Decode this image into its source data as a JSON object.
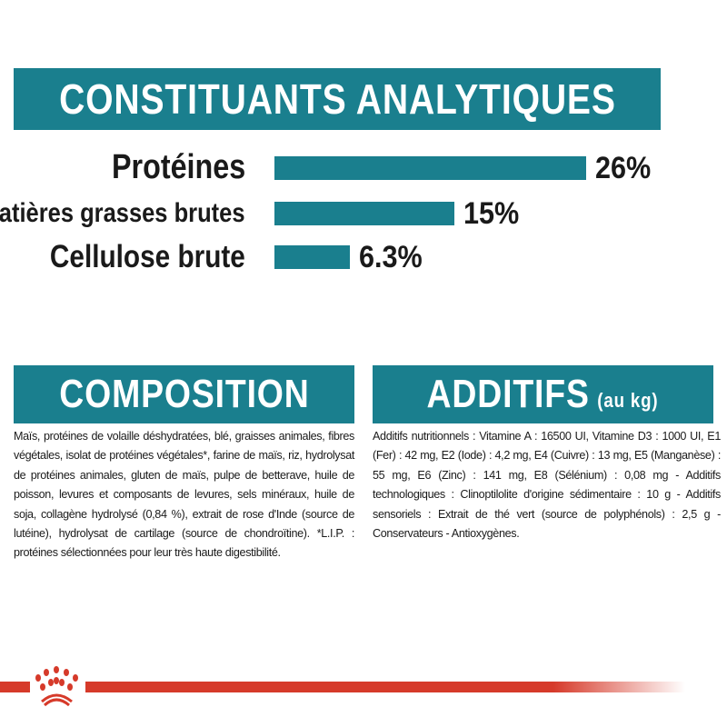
{
  "analytics": {
    "title": "CONSTITUANTS ANALYTIQUES",
    "items": [
      {
        "label": "Protéines",
        "value_label": "26%",
        "value": 26
      },
      {
        "label": "Matières grasses brutes",
        "value_label": "15%",
        "value": 15
      },
      {
        "label": "Cellulose brute",
        "value_label": "6.3%",
        "value": 6.3
      }
    ]
  },
  "composition": {
    "title": "COMPOSITION",
    "text": "Maïs, protéines de volaille déshydratées, blé, graisses animales, fibres végétales, isolat de protéines végétales*, farine de maïs, riz, hydrolysat de protéines animales, gluten de maïs, pulpe de betterave, huile de poisson, levures et composants de levures, sels minéraux, huile de soja, collagène hydrolysé (0,84 %), extrait de rose d'Inde (source de lutéine), hydrolysat de cartilage (source de chondroïtine). *L.I.P. : protéines sélectionnées pour leur très haute digestibilité."
  },
  "additifs": {
    "title": "ADDITIFS",
    "subtitle": "(au kg)",
    "text": "Additifs nutritionnels : Vitamine A : 16500 UI, Vitamine D3 : 1000 UI, E1 (Fer) : 42 mg, E2 (Iode) : 4,2 mg, E4 (Cuivre) : 13 mg, E5 (Manganèse) : 55 mg, E6 (Zinc) : 141 mg, E8 (Sélénium) : 0,08 mg - Additifs technologiques : Clinoptilolite d'origine sédimentaire : 10 g - Additifs sensoriels : Extrait de thé vert (source de polyphénols) : 2,5 g - Conservateurs - Antioxygènes."
  },
  "colors": {
    "accent": "#1a7f8e",
    "brand_red": "#d63a2a"
  },
  "logo": {
    "icon": "royal-canin-crown-icon"
  }
}
